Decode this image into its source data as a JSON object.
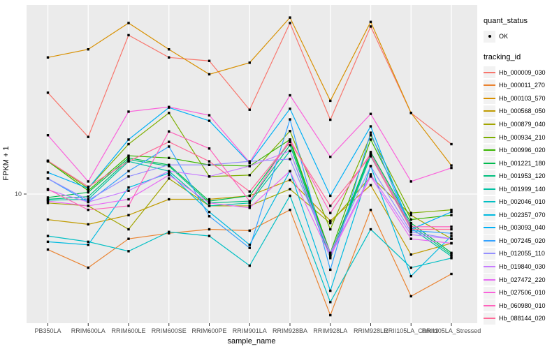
{
  "axes": {
    "x": {
      "title": "sample_name",
      "categories": [
        "PB350LA",
        "RRIM600LA",
        "RRIM600LE",
        "RRIM600SE",
        "RRIM600PE",
        "RRIM901LA",
        "RRIM928BA",
        "RRIM928LA",
        "RRIM928LE",
        "RRII105LA_Control",
        "RRII105LA_Stressed"
      ]
    },
    "y": {
      "title": "FPKM + 1",
      "scale": "log10",
      "tick_label": "10"
    }
  },
  "legend": {
    "position": "right",
    "quant_status": {
      "title": "quant_status",
      "items": [
        {
          "label": "OK",
          "symbol": "black-point"
        }
      ]
    },
    "tracking_id": {
      "title": "tracking_id"
    }
  },
  "style": {
    "panel_background": "#EBEBEB",
    "grid_color": "#FFFFFF",
    "point_color": "#000000",
    "tick_color": "#333333",
    "tick_text_color": "#4D4D4D"
  },
  "chart_data": {
    "type": "line",
    "title": "",
    "xlabel": "sample_name",
    "ylabel": "FPKM + 1",
    "yscale": "log10",
    "ylim": [
      2.1,
      92
    ],
    "grid": true,
    "legend_position": "right",
    "marker": "black-point",
    "categories": [
      "PB350LA",
      "RRIM600LA",
      "RRIM600LE",
      "RRIM600SE",
      "RRIM600PE",
      "RRIM901LA",
      "RRIM928BA",
      "RRIM928LA",
      "RRIM928LE",
      "RRII105LA_Control",
      "RRII105LA_Stressed"
    ],
    "series": [
      {
        "name": "Hb_000009_030",
        "color": "#F8766D",
        "values": [
          33,
          19.6,
          65,
          50,
          48,
          27,
          75,
          24,
          72,
          26,
          18
        ]
      },
      {
        "name": "Hb_000011_270",
        "color": "#EA8331",
        "values": [
          5.2,
          4.2,
          5.9,
          6.3,
          6.6,
          6.5,
          8.3,
          2.4,
          8.3,
          3.0,
          3.9
        ]
      },
      {
        "name": "Hb_000103_570",
        "color": "#D89000",
        "values": [
          50,
          55,
          75,
          55,
          41,
          47,
          80,
          30,
          76,
          26,
          14
        ]
      },
      {
        "name": "Hb_000568_050",
        "color": "#C09B00",
        "values": [
          7.4,
          7.0,
          7.8,
          9.4,
          9.4,
          9.8,
          11.8,
          7.3,
          11.1,
          4.9,
          5.6
        ]
      },
      {
        "name": "Hb_000879_040",
        "color": "#A3A500",
        "values": [
          9.0,
          8.7,
          6.6,
          12.0,
          8.7,
          8.7,
          10.6,
          7.1,
          12.3,
          7.8,
          5.9
        ]
      },
      {
        "name": "Hb_000934_210",
        "color": "#7CAE00",
        "values": [
          14.8,
          10.7,
          18,
          26,
          12.3,
          12.5,
          21,
          6.6,
          20,
          8.0,
          8.3
        ]
      },
      {
        "name": "Hb_000996_020",
        "color": "#39B600",
        "values": [
          14.7,
          10.4,
          15.7,
          15.3,
          14.1,
          13.9,
          19,
          5.0,
          19,
          7.4,
          7.8
        ]
      },
      {
        "name": "Hb_001221_180",
        "color": "#00BB4E",
        "values": [
          9.6,
          10.2,
          15.3,
          14.1,
          9.2,
          9.8,
          18.5,
          4.9,
          16.4,
          7.1,
          5.0
        ]
      },
      {
        "name": "Hb_001953_120",
        "color": "#00BF7D",
        "values": [
          9.4,
          9.7,
          15.0,
          13.9,
          9.0,
          9.2,
          17.8,
          4.8,
          16.0,
          6.9,
          4.9
        ]
      },
      {
        "name": "Hb_001999_140",
        "color": "#00C1A3",
        "values": [
          9.3,
          9.4,
          14.7,
          13.1,
          8.7,
          9.0,
          16.6,
          4.7,
          15.6,
          6.7,
          4.8
        ]
      },
      {
        "name": "Hb_002046_010",
        "color": "#00BFC4",
        "values": [
          6.1,
          5.7,
          5.1,
          6.4,
          6.1,
          4.3,
          9.8,
          2.8,
          6.6,
          4.2,
          4.7
        ]
      },
      {
        "name": "Hb_002357_070",
        "color": "#00BAE0",
        "values": [
          5.7,
          5.5,
          10.8,
          12.8,
          8.1,
          5.5,
          13.1,
          3.2,
          13.9,
          3.8,
          6.1
        ]
      },
      {
        "name": "Hb_003093_040",
        "color": "#00B0F6",
        "values": [
          12.9,
          10.7,
          19,
          27.7,
          23.7,
          14.4,
          27.3,
          9.8,
          22.2,
          6.6,
          8.1
        ]
      },
      {
        "name": "Hb_007245_020",
        "color": "#35A2FF",
        "values": [
          12,
          9.1,
          13.1,
          17.5,
          7.7,
          5.3,
          24.1,
          4.1,
          20.6,
          6.5,
          6.3
        ]
      },
      {
        "name": "Hb_012055_110",
        "color": "#9590FF",
        "values": [
          12,
          9.3,
          12.3,
          14.1,
          14.1,
          14.7,
          15.1,
          5.0,
          13.9,
          6.4,
          5.9
        ]
      },
      {
        "name": "Hb_019840_030",
        "color": "#C77CFF",
        "values": [
          10.5,
          9.1,
          10.4,
          13.1,
          12.3,
          13.9,
          16.6,
          4.9,
          12.6,
          6.2,
          5.9
        ]
      },
      {
        "name": "Hb_027472_220",
        "color": "#E76BF3",
        "values": [
          9.2,
          8.7,
          9.4,
          12.5,
          9.0,
          8.5,
          13.1,
          4.8,
          12.3,
          5.9,
          5.6
        ]
      },
      {
        "name": "Hb_027506_010",
        "color": "#FA62DB",
        "values": [
          20,
          11.6,
          26.4,
          27.9,
          25.3,
          14.5,
          32,
          15.5,
          25.7,
          11.6,
          13.6
        ]
      },
      {
        "name": "Hb_060980_010",
        "color": "#FF62BC",
        "values": [
          10.6,
          8.3,
          8.7,
          20.9,
          17.1,
          9.2,
          19,
          8.0,
          16.1,
          6.8,
          6.8
        ]
      },
      {
        "name": "Hb_088144_020",
        "color": "#FF6A98",
        "values": [
          14.8,
          10.9,
          14.7,
          18.5,
          14.7,
          10.3,
          18.5,
          8.7,
          15.7,
          6.6,
          6.6
        ]
      }
    ]
  }
}
